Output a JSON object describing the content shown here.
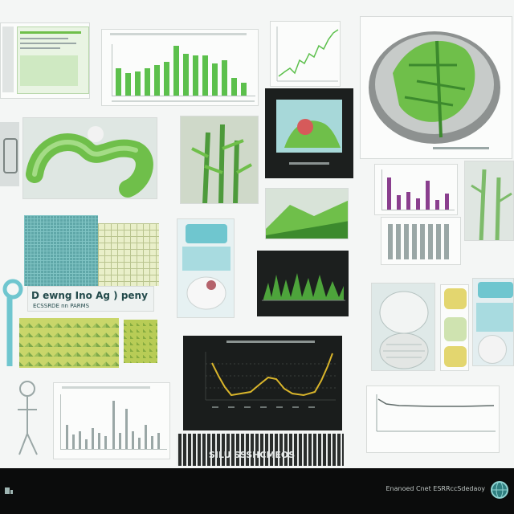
{
  "colors": {
    "accent_green": "#5cc04c",
    "leaf_green": "#6fbf4a",
    "dark_panel": "#1c1f1e",
    "teal": "#6fc6cf",
    "gold_line": "#d9b52b",
    "footer_bg": "#0b0c0c"
  },
  "icons": {
    "footer_left": "logo-icon",
    "footer_right": "globe-icon"
  },
  "footer": {
    "caption": "Enanoed Cnet ESRRccSdedaoy"
  },
  "labels": {
    "map_caption": "D ewng Ino Ag ) peny",
    "map_caption_sub": "ECSSRDE nn PARMS",
    "bottom_caption": "SILU SSSHCMEOS"
  }
}
